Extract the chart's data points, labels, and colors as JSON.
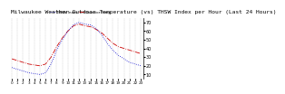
{
  "title": "Milwaukee Weather Outdoor Temperature (vs) THSW Index per Hour (Last 24 Hours)",
  "title_fontsize": 4.5,
  "background_color": "#ffffff",
  "plot_bg_color": "#ffffff",
  "grid_color": "#aaaaaa",
  "temp_color": "#cc0000",
  "thsw_color": "#0000cc",
  "hours": [
    0,
    1,
    2,
    3,
    4,
    5,
    6,
    7,
    8,
    9,
    10,
    11,
    12,
    13,
    14,
    15,
    16,
    17,
    18,
    19,
    20,
    21,
    22,
    23
  ],
  "temp_values": [
    28,
    26,
    24,
    22,
    21,
    20,
    22,
    30,
    42,
    52,
    60,
    66,
    68,
    66,
    65,
    62,
    58,
    52,
    46,
    42,
    40,
    38,
    36,
    34
  ],
  "thsw_values": [
    18,
    16,
    14,
    12,
    11,
    10,
    12,
    22,
    38,
    50,
    60,
    67,
    70,
    68,
    67,
    63,
    56,
    46,
    38,
    32,
    28,
    24,
    22,
    20
  ],
  "ylim": [
    5,
    75
  ],
  "yticks": [
    10,
    20,
    30,
    40,
    50,
    60,
    70
  ],
  "ytick_labels": [
    "10",
    "20",
    "30",
    "40",
    "50",
    "60",
    "70"
  ],
  "xtick_labels": [
    "0",
    "1",
    "2",
    "3",
    "4",
    "5",
    "6",
    "7",
    "8",
    "9",
    "10",
    "11",
    "12",
    "13",
    "14",
    "15",
    "16",
    "17",
    "18",
    "19",
    "20",
    "21",
    "22",
    "23"
  ],
  "legend_blue": "THSW Index",
  "legend_red": "Outdoor Temp",
  "ylabel_fontsize": 3.5,
  "xlabel_fontsize": 3.0,
  "tick_fontsize": 3.0
}
